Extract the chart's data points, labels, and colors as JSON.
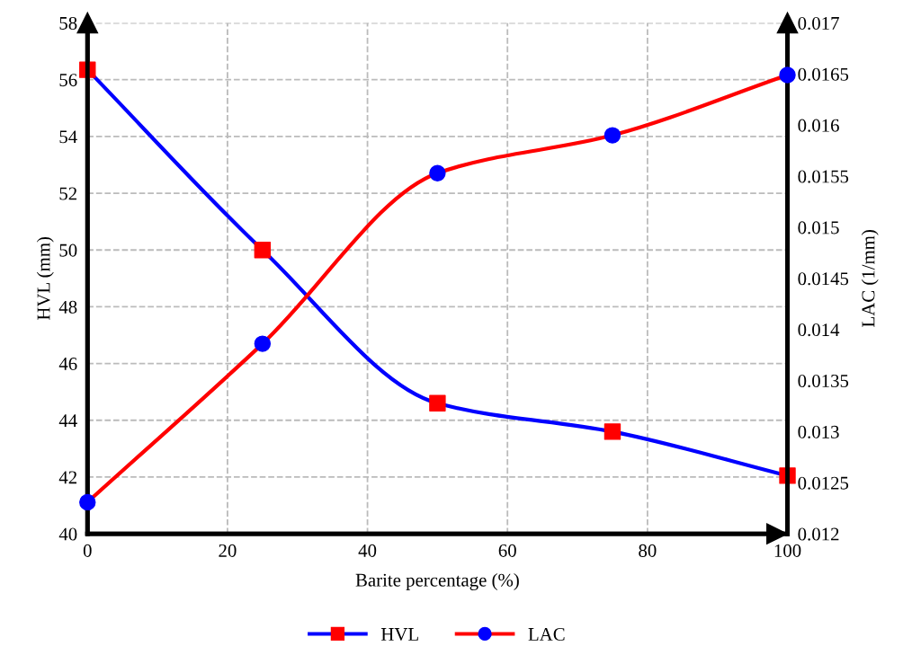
{
  "chart_data": {
    "type": "line",
    "xlabel": "Barite percentage (%)",
    "ylabel": "HVL (mm)",
    "y2label": "LAC (1/mm)",
    "x": [
      0,
      25,
      50,
      75,
      100
    ],
    "series": [
      {
        "name": "HVL",
        "color": "#0000ff",
        "colors": [
          "#ff0000",
          "#ff0000",
          "#ff0000",
          "#ff0000",
          "#ff0000"
        ],
        "marker": "square",
        "values": [
          56.35,
          50.0,
          44.6,
          43.6,
          42.05
        ]
      },
      {
        "name": "LAC",
        "color": "#ff0000",
        "colors": [
          "#0000ff",
          "#0000ff",
          "#0000ff",
          "#0000ff",
          "#0000ff"
        ],
        "marker": "circle",
        "axis": "y2",
        "values": [
          0.01231,
          0.01386,
          0.01553,
          0.0159,
          0.01649
        ]
      }
    ],
    "xlim": [
      0,
      100
    ],
    "xticks": [
      0,
      20,
      40,
      60,
      80,
      100
    ],
    "ylim": [
      40,
      58
    ],
    "yticks": [
      40,
      42,
      44,
      46,
      48,
      50,
      52,
      54,
      56,
      58
    ],
    "y2lim": [
      0.012,
      0.017
    ],
    "y2ticks": [
      0.012,
      0.0125,
      0.013,
      0.0135,
      0.014,
      0.0145,
      0.015,
      0.0155,
      0.016,
      0.0165,
      0.017
    ],
    "grid": true,
    "legend": "bottom",
    "line_style": "solid"
  }
}
